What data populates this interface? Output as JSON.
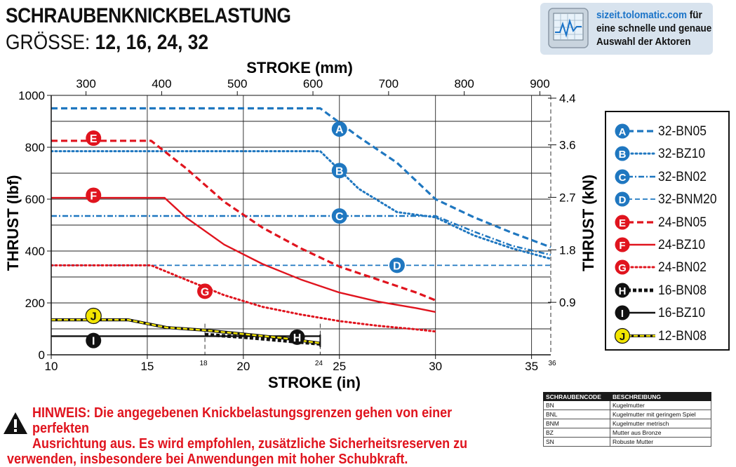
{
  "header": {
    "title": "SCHRAUBENKNICKBELASTUNG",
    "size_label": "GRÖSSE:",
    "size_values": "12, 16, 24, 32"
  },
  "promo": {
    "url": "sizeit.tolomatic.com",
    "text_after_url": "für",
    "line2": "eine schnelle und genaue",
    "line3": "Auswahl der Aktoren"
  },
  "chart_data": {
    "type": "line",
    "xlabel": "STROKE (in)",
    "ylabel": "THRUST (lbf)",
    "x2label": "STROKE (mm)",
    "y2label": "THRUST (kN)",
    "xlim": [
      10,
      36
    ],
    "ylim": [
      0,
      1000
    ],
    "x_ticks": [
      10,
      15,
      20,
      25,
      30,
      35
    ],
    "x_minor_ticks": [
      18,
      24,
      36
    ],
    "y_ticks": [
      0,
      200,
      400,
      600,
      800,
      1000
    ],
    "x2_ticks": [
      300,
      400,
      500,
      600,
      700,
      800,
      900
    ],
    "y2_ticks": [
      "0.9",
      "1.8",
      "2.7",
      "3.6",
      "4.4"
    ],
    "y2_tick_lbf": [
      202.3,
      404.7,
      607.0,
      809.3,
      989.2
    ],
    "grid": true,
    "legend_position": "right",
    "series": [
      {
        "id": "A",
        "name": "32-BN05",
        "color": "#1f77c0",
        "style": "dashed-heavy",
        "points": [
          [
            10,
            950
          ],
          [
            24.0,
            950
          ],
          [
            26,
            840
          ],
          [
            28,
            740
          ],
          [
            30,
            600
          ],
          [
            32,
            530
          ],
          [
            34,
            470
          ],
          [
            36,
            415
          ]
        ]
      },
      {
        "id": "B",
        "name": "32-BZ10",
        "color": "#1f77c0",
        "style": "dotted",
        "points": [
          [
            10,
            785
          ],
          [
            24.0,
            785
          ],
          [
            26,
            640
          ],
          [
            28,
            550
          ],
          [
            30,
            530
          ],
          [
            32,
            460
          ],
          [
            34,
            410
          ],
          [
            36,
            370
          ]
        ]
      },
      {
        "id": "C",
        "name": "32-BN02",
        "color": "#1f77c0",
        "style": "dash-dot",
        "points": [
          [
            10,
            535
          ],
          [
            30,
            535
          ],
          [
            32,
            475
          ],
          [
            34,
            420
          ],
          [
            36,
            385
          ]
        ]
      },
      {
        "id": "D",
        "name": "32-BNM20",
        "color": "#1f77c0",
        "style": "dashed-thin",
        "points": [
          [
            10,
            345
          ],
          [
            36,
            345
          ]
        ]
      },
      {
        "id": "E",
        "name": "24-BN05",
        "color": "#e0141e",
        "style": "dashed-heavy",
        "points": [
          [
            10,
            825
          ],
          [
            15.2,
            825
          ],
          [
            17,
            720
          ],
          [
            19,
            590
          ],
          [
            21,
            490
          ],
          [
            23,
            410
          ],
          [
            25,
            340
          ],
          [
            27,
            290
          ],
          [
            29,
            240
          ],
          [
            30,
            210
          ]
        ]
      },
      {
        "id": "F",
        "name": "24-BZ10",
        "color": "#e0141e",
        "style": "solid",
        "points": [
          [
            10,
            605
          ],
          [
            15.9,
            605
          ],
          [
            17,
            530
          ],
          [
            19,
            425
          ],
          [
            21,
            350
          ],
          [
            23,
            290
          ],
          [
            25,
            240
          ],
          [
            27,
            205
          ],
          [
            29,
            180
          ],
          [
            30,
            165
          ]
        ]
      },
      {
        "id": "G",
        "name": "24-BN02",
        "color": "#e0141e",
        "style": "dotted",
        "points": [
          [
            10,
            345
          ],
          [
            15.2,
            345
          ],
          [
            17,
            290
          ],
          [
            19,
            230
          ],
          [
            21,
            185
          ],
          [
            23,
            155
          ],
          [
            25,
            130
          ],
          [
            27,
            112
          ],
          [
            29,
            98
          ],
          [
            30,
            90
          ]
        ]
      },
      {
        "id": "H",
        "name": "16-BN08",
        "color": "#111111",
        "style": "dashed-heavy",
        "points": [
          [
            18,
            78
          ],
          [
            20,
            68
          ],
          [
            22,
            55
          ],
          [
            24,
            42
          ]
        ]
      },
      {
        "id": "I",
        "name": "16-BZ10",
        "color": "#111111",
        "style": "solid",
        "points": [
          [
            10,
            72
          ],
          [
            24,
            72
          ]
        ]
      },
      {
        "id": "J",
        "name": "12-BN08",
        "color": "#f2e500",
        "style": "dashed",
        "points": [
          [
            10,
            135
          ],
          [
            14,
            135
          ],
          [
            15,
            120
          ],
          [
            16,
            105
          ],
          [
            18,
            95
          ],
          [
            20,
            80
          ],
          [
            22,
            65
          ],
          [
            24,
            45
          ]
        ]
      }
    ],
    "markers": [
      {
        "id": "A",
        "x": 25.0,
        "y": 870,
        "fill": "#1f77c0",
        "text": "#ffffff"
      },
      {
        "id": "B",
        "x": 25.0,
        "y": 710,
        "fill": "#1f77c0",
        "text": "#ffffff"
      },
      {
        "id": "C",
        "x": 25.0,
        "y": 535,
        "fill": "#1f77c0",
        "text": "#ffffff"
      },
      {
        "id": "D",
        "x": 28.0,
        "y": 345,
        "fill": "#1f77c0",
        "text": "#ffffff"
      },
      {
        "id": "E",
        "x": 12.2,
        "y": 835,
        "fill": "#e0141e",
        "text": "#ffffff"
      },
      {
        "id": "F",
        "x": 12.2,
        "y": 615,
        "fill": "#e0141e",
        "text": "#ffffff"
      },
      {
        "id": "G",
        "x": 18.0,
        "y": 245,
        "fill": "#e0141e",
        "text": "#ffffff"
      },
      {
        "id": "H",
        "x": 22.8,
        "y": 68,
        "fill": "#111111",
        "text": "#ffffff"
      },
      {
        "id": "I",
        "x": 12.2,
        "y": 55,
        "fill": "#111111",
        "text": "#ffffff"
      },
      {
        "id": "J",
        "x": 12.2,
        "y": 150,
        "fill": "#f2e500",
        "text": "#111111"
      }
    ]
  },
  "legend": [
    {
      "id": "A",
      "label": "32-BN05"
    },
    {
      "id": "B",
      "label": "32-BZ10"
    },
    {
      "id": "C",
      "label": "32-BN02"
    },
    {
      "id": "D",
      "label": "32-BNM20"
    },
    {
      "id": "E",
      "label": "24-BN05"
    },
    {
      "id": "F",
      "label": "24-BZ10"
    },
    {
      "id": "G",
      "label": "24-BN02"
    },
    {
      "id": "H",
      "label": "16-BN08"
    },
    {
      "id": "I",
      "label": "16-BZ10"
    },
    {
      "id": "J",
      "label": "12-BN08"
    }
  ],
  "codes_table": {
    "headers": [
      "SCHRAUBENCODE",
      "BESCHREIBUNG"
    ],
    "rows": [
      [
        "BN",
        "Kugelmutter"
      ],
      [
        "BNL",
        "Kugelmutter mit geringem Spiel"
      ],
      [
        "BNM",
        "Kugelmutter metrisch"
      ],
      [
        "BZ",
        "Mutter aus Bronze"
      ],
      [
        "SN",
        "Robuste Mutter"
      ]
    ]
  },
  "note": {
    "line1": "HINWEIS: Die angegebenen Knickbelastungsgrenzen gehen von einer perfekten",
    "line2": "Ausrichtung aus. Es wird empfohlen, zusätzliche Sicherheitsreserven zu",
    "line3": "verwenden, insbesondere bei Anwendungen mit hoher Schubkraft."
  }
}
